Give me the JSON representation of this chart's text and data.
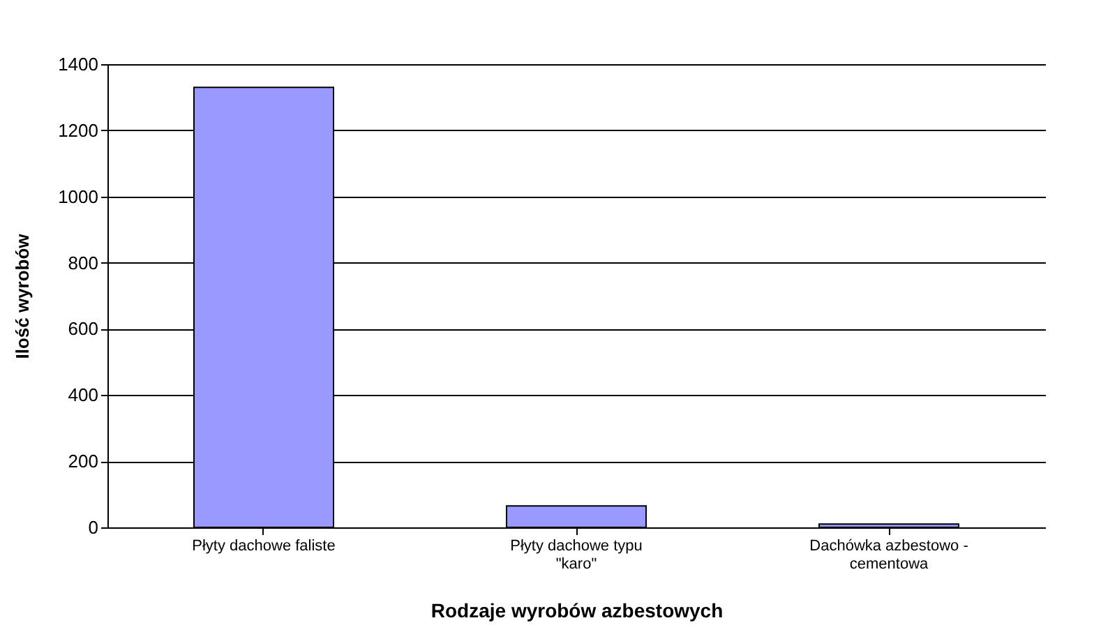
{
  "chart_data": {
    "type": "bar",
    "xlabel": "Rodzaje wyrobów azbestowych",
    "ylabel": "Ilość wyrobów",
    "categories": [
      "Płyty dachowe faliste",
      "Płyty dachowe typu \"karo\"",
      "Dachówka azbestowo - cementowa"
    ],
    "values": [
      1330,
      65,
      10
    ],
    "color": "#9999ff",
    "ylim": [
      0,
      1400
    ],
    "yticks": [
      0,
      200,
      400,
      600,
      800,
      1000,
      1200,
      1400
    ],
    "grid": "y"
  }
}
